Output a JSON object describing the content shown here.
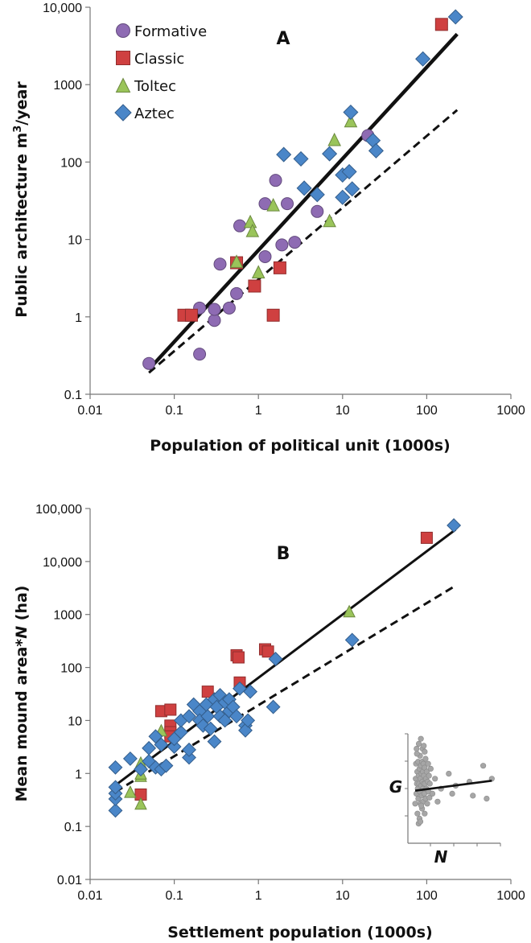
{
  "chart_data": [
    {
      "type": "scatter",
      "panel_label": "A",
      "xlabel": "Population of political unit (1000s)",
      "ylabel_main": "Public architecture m",
      "ylabel_sup": "3",
      "ylabel_tail": "/year",
      "xscale": "log",
      "yscale": "log",
      "xlim": [
        0.01,
        1000
      ],
      "ylim": [
        0.1,
        10000
      ],
      "xticks": [
        "0.01",
        "0.1",
        "1",
        "10",
        "100",
        "1000"
      ],
      "yticks": [
        "0.1",
        "1",
        "10",
        "100",
        "1000",
        "10,000"
      ],
      "legend_position": "top-left",
      "series": [
        {
          "name": "Formative",
          "marker": "circle",
          "color": "#8e6bb3",
          "points": [
            [
              0.05,
              0.25
            ],
            [
              0.2,
              1.3
            ],
            [
              0.2,
              0.33
            ],
            [
              0.3,
              0.9
            ],
            [
              0.3,
              1.25
            ],
            [
              0.35,
              4.8
            ],
            [
              0.45,
              1.3
            ],
            [
              0.55,
              2
            ],
            [
              0.6,
              15
            ],
            [
              1.2,
              6
            ],
            [
              1.2,
              29
            ],
            [
              1.6,
              58
            ],
            [
              1.9,
              8.5
            ],
            [
              2.2,
              29
            ],
            [
              2.7,
              9.2
            ],
            [
              5.0,
              23
            ],
            [
              20,
              220
            ]
          ]
        },
        {
          "name": "Classic",
          "marker": "square",
          "color": "#cf4040",
          "points": [
            [
              0.13,
              1.05
            ],
            [
              0.16,
              1.05
            ],
            [
              0.55,
              5
            ],
            [
              0.9,
              2.5
            ],
            [
              1.5,
              1.05
            ],
            [
              1.8,
              4.3
            ],
            [
              150,
              6000
            ]
          ]
        },
        {
          "name": "Toltec",
          "marker": "triangle",
          "color": "#9ac45a",
          "points": [
            [
              0.55,
              5.2
            ],
            [
              0.8,
              17
            ],
            [
              0.85,
              13
            ],
            [
              1.0,
              3.8
            ],
            [
              1.5,
              28
            ],
            [
              7.0,
              17.5
            ],
            [
              8.0,
              195
            ],
            [
              12.5,
              340
            ]
          ]
        },
        {
          "name": "Aztec",
          "marker": "diamond",
          "color": "#4a86c8",
          "points": [
            [
              2.0,
              125
            ],
            [
              3.2,
              110
            ],
            [
              3.5,
              46
            ],
            [
              5,
              38
            ],
            [
              7.0,
              128
            ],
            [
              10,
              68
            ],
            [
              10,
              35
            ],
            [
              12,
              75
            ],
            [
              12.5,
              440
            ],
            [
              13,
              45
            ],
            [
              23,
              190
            ],
            [
              25,
              140
            ],
            [
              90,
              2150
            ],
            [
              220,
              7500
            ]
          ]
        }
      ],
      "fit_lines": [
        {
          "style": "solid",
          "from": [
            0.05,
            0.21
          ],
          "to": [
            230,
            4500
          ]
        },
        {
          "style": "dashed",
          "from": [
            0.05,
            0.19
          ],
          "to": [
            230,
            470
          ]
        }
      ]
    },
    {
      "type": "scatter",
      "panel_label": "B",
      "xlabel": "Settlement population (1000s)",
      "ylabel_main": "Mean mound area*",
      "ylabel_italic": "N",
      "ylabel_tail": " (ha)",
      "xscale": "log",
      "yscale": "log",
      "xlim": [
        0.01,
        1000
      ],
      "ylim": [
        0.01,
        100000
      ],
      "xticks": [
        "0.01",
        "0.1",
        "1",
        "10",
        "100",
        "1000"
      ],
      "yticks": [
        "0.01",
        "0.1",
        "1",
        "10",
        "100",
        "1000",
        "10,000",
        "100,000"
      ],
      "series": [
        {
          "name": "Classic",
          "marker": "square",
          "color": "#cf4040",
          "points": [
            [
              0.04,
              0.4
            ],
            [
              0.07,
              15
            ],
            [
              0.09,
              16
            ],
            [
              0.09,
              8
            ],
            [
              0.09,
              6
            ],
            [
              0.09,
              5
            ],
            [
              0.25,
              35
            ],
            [
              0.55,
              170
            ],
            [
              0.58,
              155
            ],
            [
              0.6,
              52
            ],
            [
              1.2,
              220
            ],
            [
              1.3,
              200
            ],
            [
              100,
              28000
            ]
          ]
        },
        {
          "name": "Toltec",
          "marker": "triangle",
          "color": "#9ac45a",
          "points": [
            [
              0.03,
              0.45
            ],
            [
              0.04,
              0.27
            ],
            [
              0.04,
              0.9
            ],
            [
              0.04,
              1.0
            ],
            [
              0.04,
              1.6
            ],
            [
              0.07,
              6.5
            ],
            [
              12,
              1150
            ]
          ]
        },
        {
          "name": "Aztec",
          "marker": "diamond",
          "color": "#4a86c8",
          "points": [
            [
              0.02,
              0.2
            ],
            [
              0.02,
              0.33
            ],
            [
              0.02,
              0.42
            ],
            [
              0.02,
              0.55
            ],
            [
              0.02,
              1.3
            ],
            [
              0.03,
              1.9
            ],
            [
              0.04,
              1.2
            ],
            [
              0.05,
              3
            ],
            [
              0.05,
              1.7
            ],
            [
              0.06,
              5
            ],
            [
              0.06,
              1.3
            ],
            [
              0.07,
              3.5
            ],
            [
              0.07,
              1.2
            ],
            [
              0.08,
              1.4
            ],
            [
              0.1,
              3.2
            ],
            [
              0.1,
              4.5
            ],
            [
              0.12,
              6
            ],
            [
              0.12,
              10
            ],
            [
              0.15,
              2
            ],
            [
              0.15,
              12
            ],
            [
              0.15,
              2.8
            ],
            [
              0.17,
              20
            ],
            [
              0.2,
              15
            ],
            [
              0.2,
              10
            ],
            [
              0.22,
              8
            ],
            [
              0.24,
              20
            ],
            [
              0.25,
              12
            ],
            [
              0.27,
              7
            ],
            [
              0.3,
              25
            ],
            [
              0.3,
              4
            ],
            [
              0.32,
              18
            ],
            [
              0.35,
              12
            ],
            [
              0.35,
              30
            ],
            [
              0.4,
              10
            ],
            [
              0.4,
              22
            ],
            [
              0.45,
              15
            ],
            [
              0.45,
              25
            ],
            [
              0.5,
              18
            ],
            [
              0.55,
              12
            ],
            [
              0.6,
              40
            ],
            [
              0.7,
              8
            ],
            [
              0.7,
              6.5
            ],
            [
              0.75,
              10
            ],
            [
              0.8,
              35
            ],
            [
              1.5,
              18
            ],
            [
              1.6,
              145
            ],
            [
              13,
              330
            ],
            [
              210,
              48000
            ]
          ]
        }
      ],
      "fit_lines": [
        {
          "style": "solid",
          "from": [
            0.02,
            0.6
          ],
          "to": [
            220,
            40000
          ]
        },
        {
          "style": "dashed",
          "from": [
            0.02,
            0.45
          ],
          "to": [
            220,
            3500
          ]
        }
      ],
      "inset": {
        "xlabel": "N",
        "ylabel": "G",
        "points": [
          [
            0.05,
            0.3
          ],
          [
            0.08,
            0.55
          ],
          [
            0.1,
            0.7
          ],
          [
            0.12,
            0.4
          ],
          [
            0.13,
            0.85
          ],
          [
            0.15,
            0.5
          ],
          [
            0.17,
            0.62
          ],
          [
            0.18,
            0.2
          ],
          [
            0.2,
            0.45
          ],
          [
            0.22,
            0.72
          ],
          [
            0.23,
            0.35
          ],
          [
            0.25,
            0.58
          ],
          [
            0.26,
            0.9
          ],
          [
            0.28,
            0.5
          ],
          [
            0.3,
            0.65
          ],
          [
            0.3,
            0.15
          ],
          [
            0.32,
            0.42
          ],
          [
            0.33,
            0.78
          ],
          [
            0.35,
            0.55
          ],
          [
            0.36,
            0.3
          ],
          [
            0.38,
            0.68
          ],
          [
            0.38,
            0.95
          ],
          [
            0.4,
            0.48
          ],
          [
            0.42,
            0.6
          ],
          [
            0.43,
            0.38
          ],
          [
            0.45,
            0.72
          ],
          [
            0.45,
            0.25
          ],
          [
            0.47,
            0.52
          ],
          [
            0.48,
            0.85
          ],
          [
            0.5,
            0.45
          ],
          [
            0.5,
            0.62
          ],
          [
            0.52,
            0.32
          ],
          [
            0.53,
            0.7
          ],
          [
            0.55,
            0.5
          ],
          [
            0.56,
            0.58
          ],
          [
            0.58,
            0.4
          ],
          [
            0.6,
            0.66
          ],
          [
            0.6,
            0.2
          ],
          [
            0.62,
            0.5
          ],
          [
            0.65,
            0.75
          ],
          [
            0.66,
            0.35
          ],
          [
            0.68,
            0.55
          ],
          [
            0.7,
            0.45
          ],
          [
            0.72,
            0.62
          ],
          [
            0.75,
            0.3
          ],
          [
            0.78,
            0.52
          ],
          [
            0.8,
            0.7
          ],
          [
            0.82,
            0.42
          ],
          [
            0.85,
            0.58
          ],
          [
            0.88,
            0.36
          ],
          [
            0.9,
            0.5
          ],
          [
            0.95,
            0.65
          ],
          [
            1.05,
            0.4
          ],
          [
            1.2,
            0.55
          ],
          [
            1.35,
            0.32
          ],
          [
            1.55,
            0.45
          ],
          [
            2.0,
            0.6
          ],
          [
            2.2,
            0.4
          ],
          [
            2.4,
            0.48
          ],
          [
            3.2,
            0.52
          ],
          [
            3.4,
            0.38
          ],
          [
            4.0,
            0.68
          ],
          [
            4.2,
            0.35
          ],
          [
            4.5,
            0.55
          ],
          [
            0.15,
            0.8
          ],
          [
            0.25,
            0.1
          ],
          [
            0.4,
            0.28
          ],
          [
            0.6,
            0.82
          ],
          [
            0.35,
            0.12
          ],
          [
            0.55,
            0.88
          ]
        ],
        "fit_line": {
          "from": [
            0.05,
            0.43
          ],
          "to": [
            4.5,
            0.53
          ]
        }
      }
    }
  ]
}
